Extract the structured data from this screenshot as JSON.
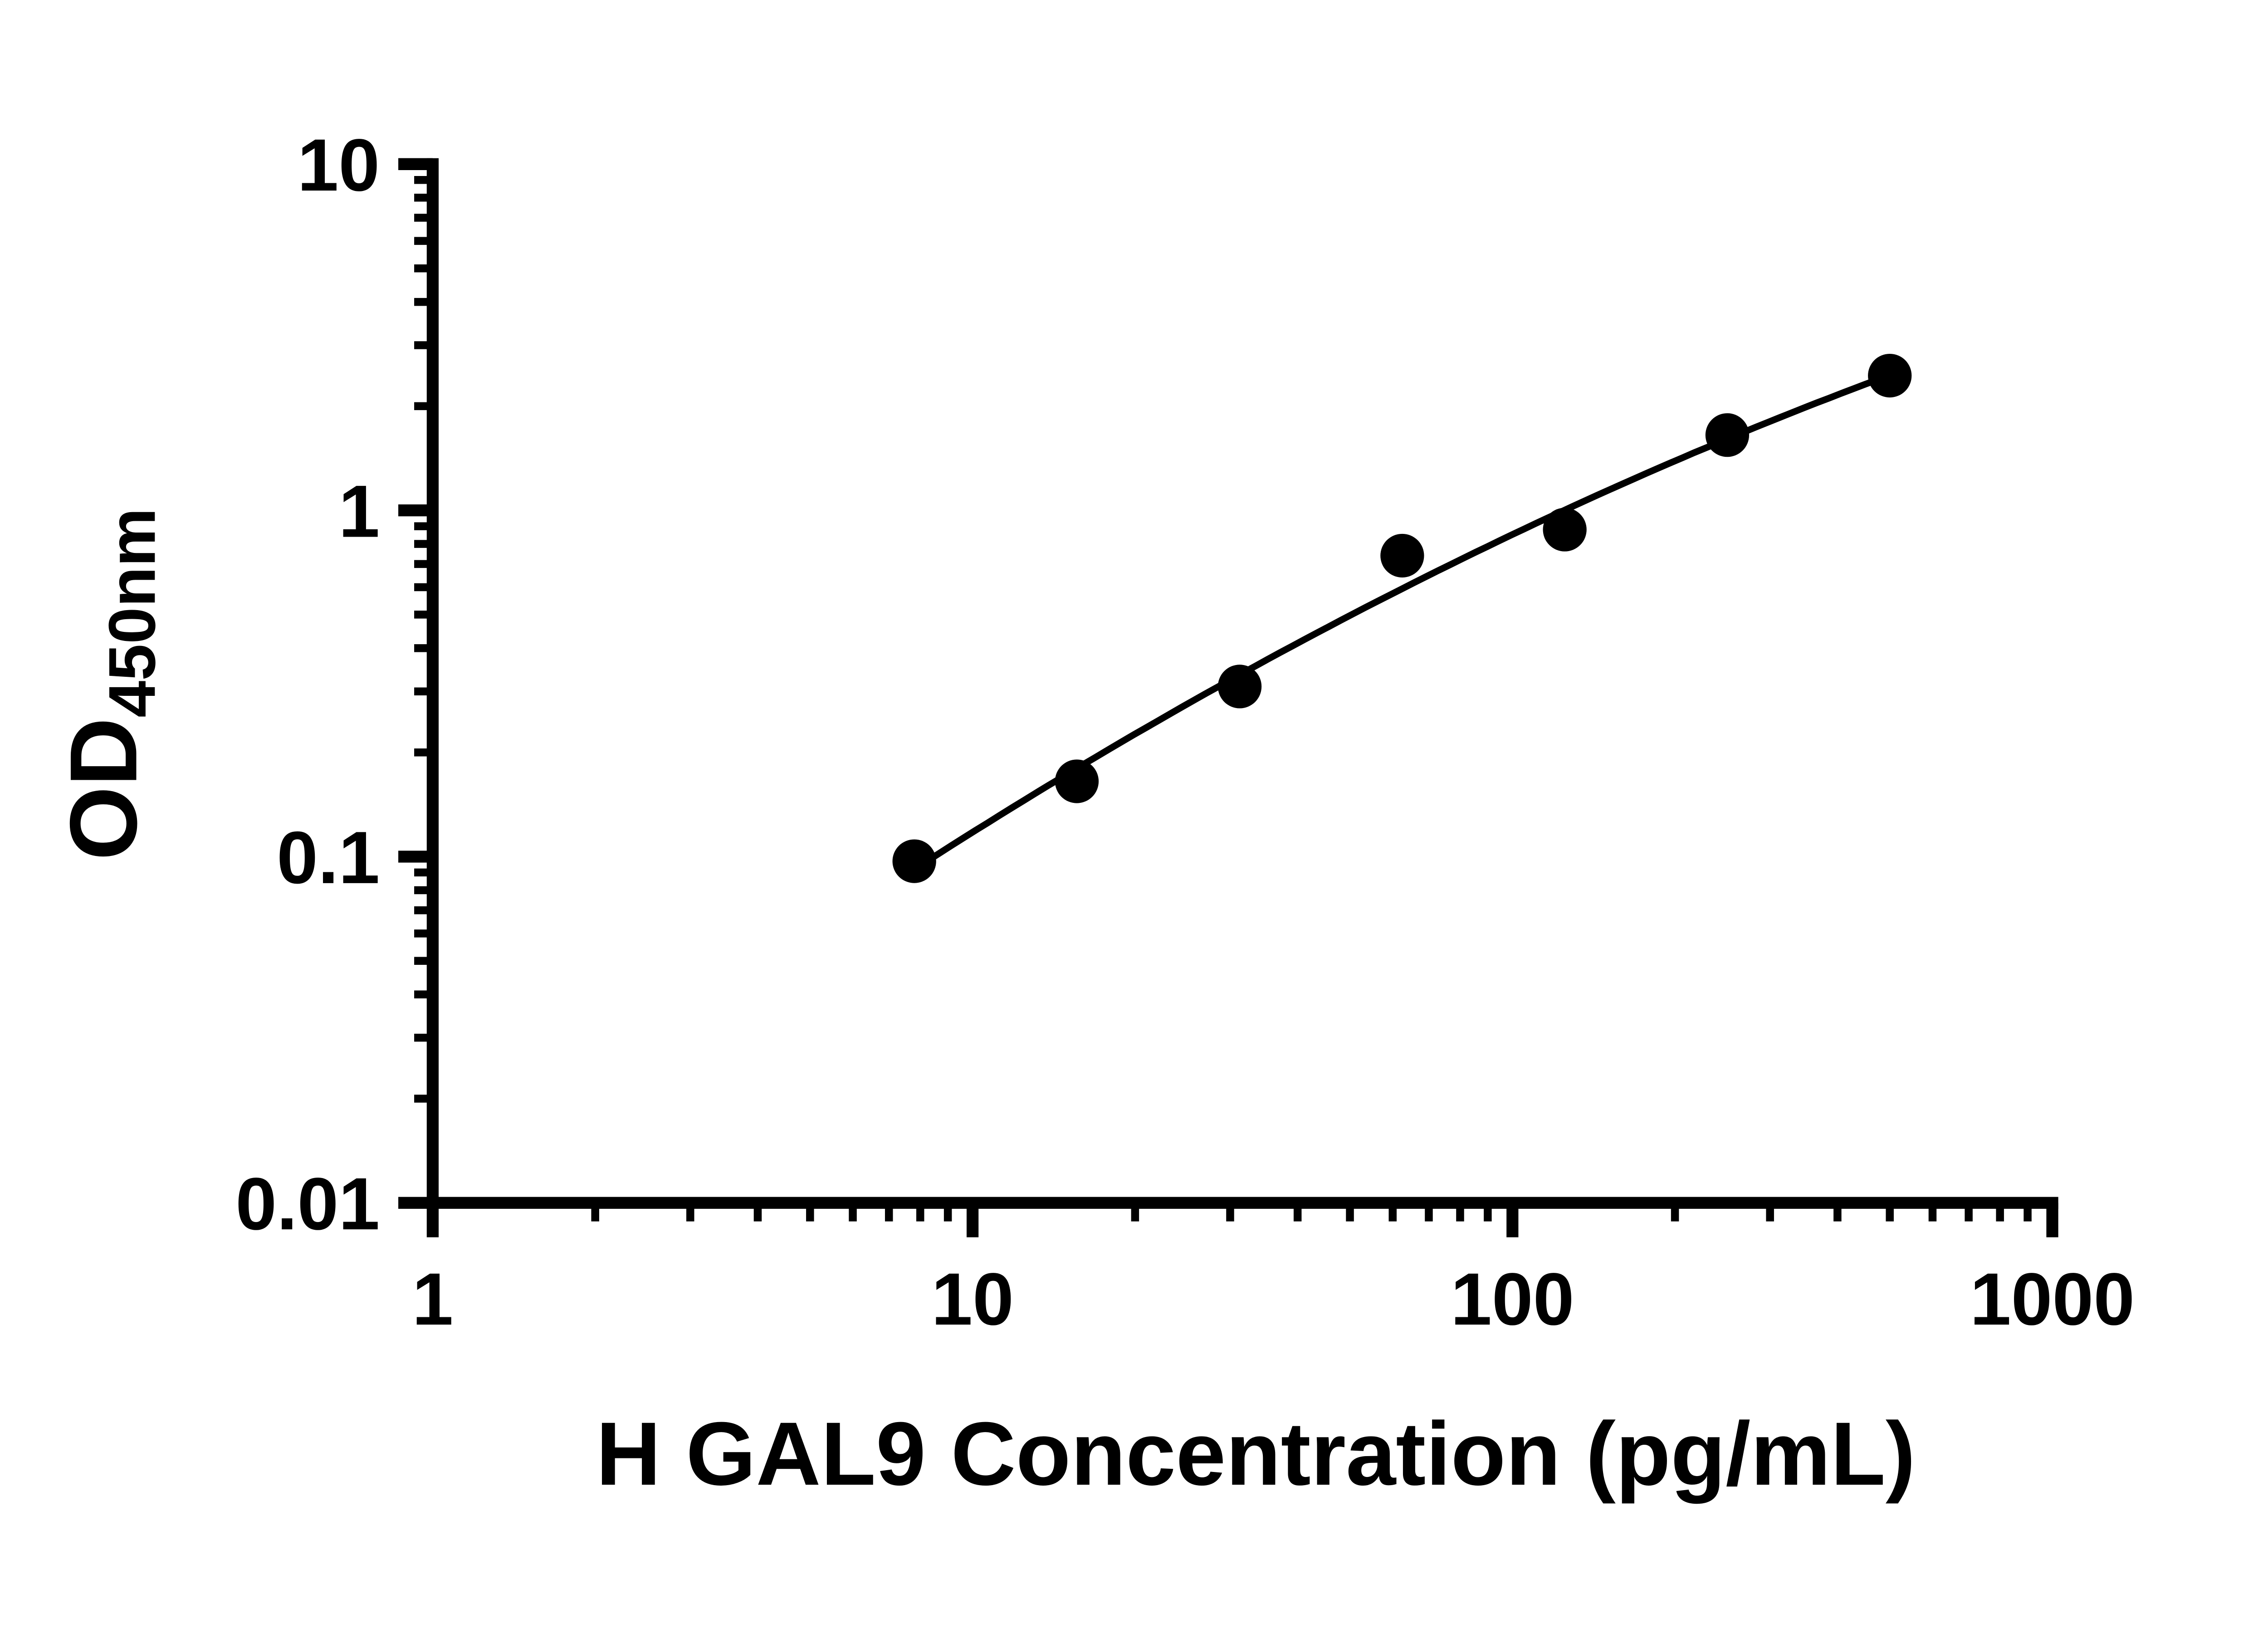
{
  "figure": {
    "background": "#ffffff",
    "axis_color": "#000000"
  },
  "chart_data": {
    "type": "scatter",
    "xlabel": "H GAL9 Concentration (pg/mL)",
    "ylabel": "OD450nm",
    "ylabel_main": "OD",
    "ylabel_sub": "450nm",
    "x_scale": "log",
    "y_scale": "log",
    "xlim": [
      1,
      1000
    ],
    "ylim": [
      0.01,
      10
    ],
    "x_ticks": {
      "values": [
        1,
        10,
        100,
        1000
      ],
      "labels": [
        "1",
        "10",
        "100",
        "1000"
      ]
    },
    "y_ticks": {
      "values": [
        0.01,
        0.1,
        1,
        10
      ],
      "labels": [
        "0.01",
        "0.1",
        "1",
        "10"
      ]
    },
    "minor_ticks": "log decade subdivisions (2-9)",
    "grid": false,
    "legend": false,
    "marker": {
      "shape": "circle",
      "color": "#000000"
    },
    "trendline": {
      "show": true,
      "style": "smooth fitted curve through points",
      "color": "#000000"
    },
    "x": [
      7.8,
      15.6,
      31.25,
      62.5,
      125,
      250,
      500
    ],
    "y": [
      0.097,
      0.165,
      0.31,
      0.74,
      0.88,
      1.65,
      2.45
    ]
  }
}
